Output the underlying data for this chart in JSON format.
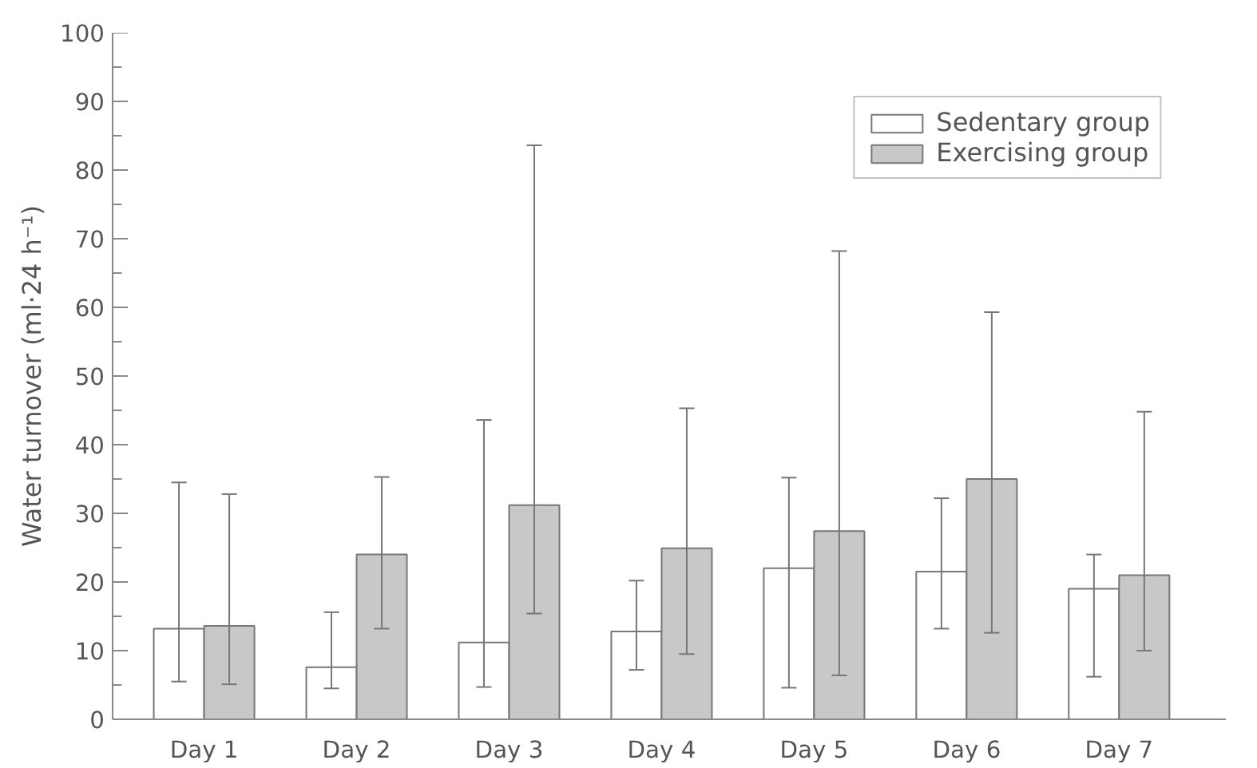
{
  "chart_data": {
    "type": "bar",
    "ylabel": "Water turnover (ml·24 h⁻¹)",
    "categories": [
      "Day 1",
      "Day 2",
      "Day 3",
      "Day 4",
      "Day 5",
      "Day 6",
      "Day 7"
    ],
    "series": [
      {
        "name": "Sedentary group",
        "color": "#ffffff",
        "values": [
          13.2,
          7.6,
          11.2,
          12.8,
          22.0,
          21.5,
          19.0
        ],
        "errors": [
          [
            5.5,
            34.5
          ],
          [
            4.5,
            15.6
          ],
          [
            4.7,
            43.6
          ],
          [
            7.2,
            20.2
          ],
          [
            4.6,
            35.2
          ],
          [
            13.2,
            32.2
          ],
          [
            6.2,
            24.0
          ]
        ]
      },
      {
        "name": "Exercising group",
        "color": "#c8c8c8",
        "values": [
          13.6,
          24.0,
          31.2,
          24.9,
          27.4,
          35.0,
          21.0
        ],
        "errors": [
          [
            5.1,
            32.8
          ],
          [
            13.2,
            35.3
          ],
          [
            15.4,
            83.6
          ],
          [
            9.5,
            45.3
          ],
          [
            6.4,
            68.2
          ],
          [
            12.6,
            59.3
          ],
          [
            10.0,
            44.8
          ]
        ]
      }
    ],
    "ylim": [
      0,
      100
    ],
    "yticks": [
      0,
      {
        "value": 5,
        "label": null
      },
      10,
      {
        "value": 15,
        "label": null
      },
      20,
      {
        "value": 25,
        "label": null
      },
      30,
      {
        "value": 35,
        "label": null
      },
      40,
      {
        "value": 45,
        "label": null
      },
      50,
      {
        "value": 55,
        "label": null
      },
      60,
      {
        "value": 65,
        "label": null
      },
      70,
      {
        "value": 75,
        "label": null
      },
      80,
      {
        "value": 85,
        "label": null
      },
      90,
      {
        "value": 95,
        "label": null
      },
      100
    ],
    "grid": false,
    "legend": "top right"
  }
}
